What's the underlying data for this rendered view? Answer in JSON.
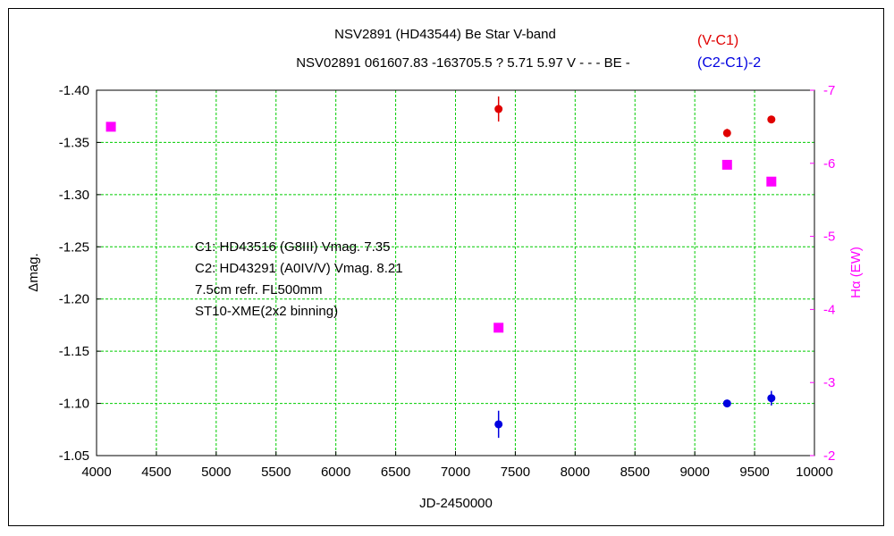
{
  "chart_data": {
    "type": "scatter",
    "title": "NSV2891 (HD43544)    Be Star    V-band",
    "subtitle": "NSV02891 061607.83 -163705.5 ? 5.71 5.97 V - - - BE -",
    "xlabel": "JD-2450000",
    "ylabel": "Δmag.",
    "y2label": "Hα (EW)",
    "xlim": [
      4000,
      10000
    ],
    "ylim": [
      -1.4,
      -1.05
    ],
    "y_axis_inverted": true,
    "y2lim": [
      -7,
      -2
    ],
    "y2_axis_inverted": true,
    "grid": true,
    "legend_position": "top-right",
    "x_ticks": [
      "4000",
      "4500",
      "5000",
      "5500",
      "6000",
      "6500",
      "7000",
      "7500",
      "8000",
      "8500",
      "9000",
      "9500",
      "10000"
    ],
    "y_ticks": [
      "-1.40",
      "-1.35",
      "-1.30",
      "-1.25",
      "-1.20",
      "-1.15",
      "-1.10",
      "-1.05"
    ],
    "y2_ticks": [
      "-7",
      "-6",
      "-5",
      "-4",
      "-3",
      "-2"
    ],
    "annotations": [
      "C1: HD43516 (G8III) Vmag. 7.35",
      "C2: HD43291 (A0IV/V) Vmag. 8.21",
      "7.5cm refr. FL500mm",
      "ST10-XME(2x2 binning)"
    ],
    "series": [
      {
        "name": "(V-C1)",
        "color": "#e00000",
        "axis": "left",
        "marker": "circle",
        "x": [
          7360,
          9270,
          9640
        ],
        "y": [
          -1.382,
          -1.359,
          -1.372
        ],
        "yerr": [
          0.012,
          0.004,
          0.0
        ]
      },
      {
        "name": "(C2-C1)-2",
        "color": "#0000e0",
        "axis": "left",
        "marker": "circle",
        "x": [
          7360,
          9270,
          9640
        ],
        "y": [
          -1.08,
          -1.1,
          -1.105
        ],
        "yerr": [
          0.013,
          0.0,
          0.007
        ]
      },
      {
        "name": "Hα (EW)",
        "color": "#ff00ff",
        "axis": "right",
        "marker": "square",
        "x": [
          4120,
          7360,
          9270,
          9640
        ],
        "y": [
          -6.5,
          -3.75,
          -5.98,
          -5.75
        ]
      }
    ]
  },
  "colors": {
    "grid": "#00cc00",
    "y2_axis": "#ff00ff",
    "frame": "#000000"
  }
}
